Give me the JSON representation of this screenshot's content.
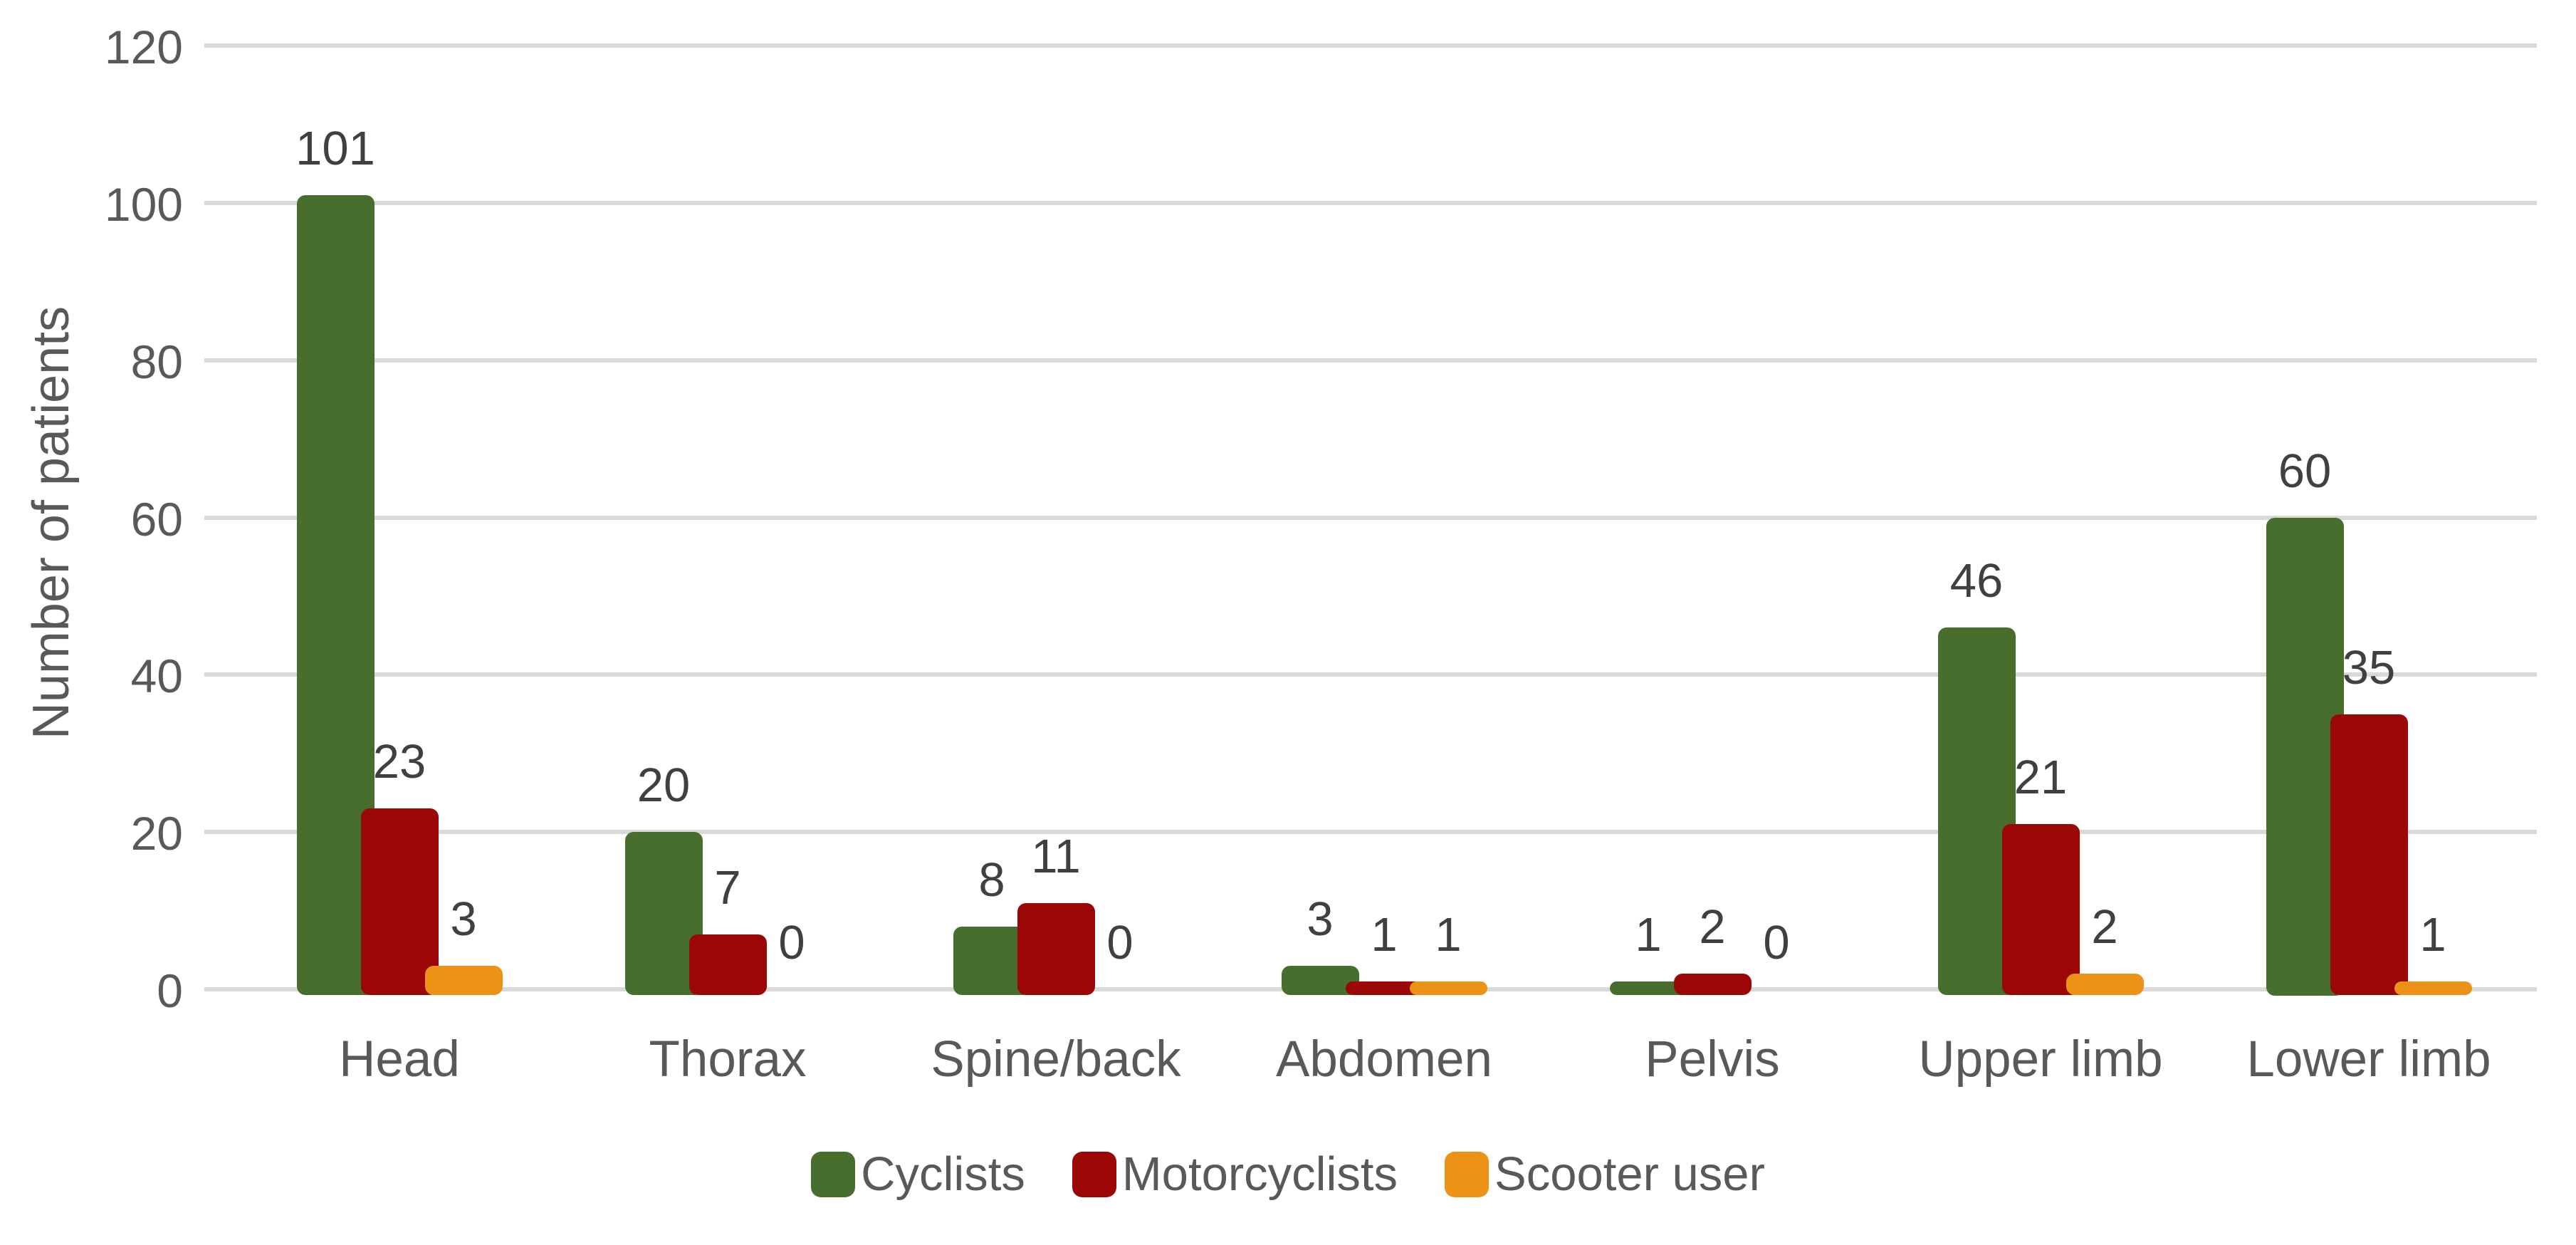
{
  "chart_data": {
    "type": "bar",
    "title": "",
    "categories": [
      "Head",
      "Thorax",
      "Spine/back",
      "Abdomen",
      "Pelvis",
      "Upper limb",
      "Lower limb"
    ],
    "series": [
      {
        "name": "Cyclists",
        "color": "#476E2C",
        "values": [
          101,
          20,
          8,
          3,
          1,
          46,
          60
        ]
      },
      {
        "name": "Motorcyclists",
        "color": "#9B0606",
        "values": [
          23,
          7,
          11,
          1,
          2,
          21,
          35
        ]
      },
      {
        "name": "Scooter user",
        "color": "#EC9217",
        "values": [
          3,
          0,
          0,
          1,
          0,
          2,
          1
        ]
      }
    ],
    "xlabel": "",
    "ylabel": "Number of patients",
    "ylim": [
      0,
      120
    ],
    "yticks": [
      0,
      20,
      40,
      60,
      80,
      100,
      120
    ],
    "grid": "horizontal",
    "legend_position": "bottom",
    "data_labels": true
  },
  "colors": {
    "text": "#595959",
    "data_label_text": "#404040",
    "gridline": "#D9D9D9",
    "background": "#FFFFFF"
  }
}
